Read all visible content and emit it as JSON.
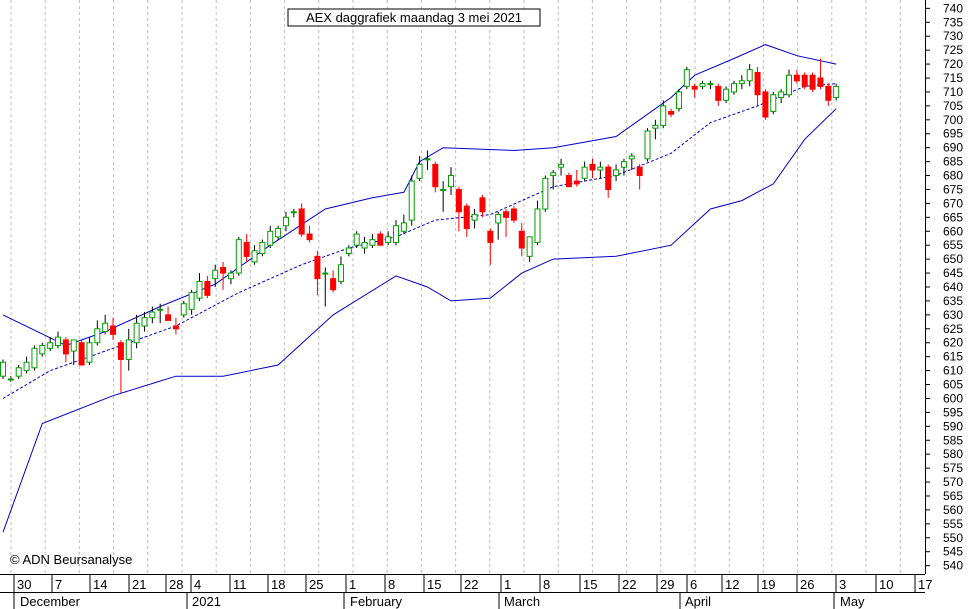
{
  "chart_data": {
    "type": "candlestick",
    "title": "AEX daggrafiek maandag 3 mei 2021",
    "copyright": "© ADN Beursanalyse",
    "ylim": [
      537,
      743
    ],
    "y_ticks": [
      540,
      545,
      550,
      555,
      560,
      565,
      570,
      575,
      580,
      585,
      590,
      595,
      600,
      605,
      610,
      615,
      620,
      625,
      630,
      635,
      640,
      645,
      650,
      655,
      660,
      665,
      670,
      675,
      680,
      685,
      690,
      695,
      700,
      705,
      710,
      715,
      720,
      725,
      730,
      735,
      740
    ],
    "x_ticks": [
      "30",
      "7",
      "14",
      "21",
      "28",
      "4",
      "11",
      "18",
      "25",
      "1",
      "8",
      "15",
      "22",
      "1",
      "8",
      "15",
      "22",
      "29",
      "6",
      "12",
      "19",
      "26",
      "3",
      "10",
      "17"
    ],
    "month_labels": [
      "December",
      "2021",
      "February",
      "March",
      "April",
      "May"
    ],
    "colors": {
      "up": "#00a000",
      "down": "#ff0000",
      "band": "#0000cc",
      "axis": "#000000"
    },
    "candles": [
      {
        "o": 608,
        "h": 614,
        "l": 607,
        "c": 613
      },
      {
        "o": 607,
        "h": 608,
        "l": 606,
        "c": 607
      },
      {
        "o": 608,
        "h": 612,
        "l": 607,
        "c": 611
      },
      {
        "o": 610,
        "h": 615,
        "l": 609,
        "c": 613
      },
      {
        "o": 611,
        "h": 619,
        "l": 610,
        "c": 618
      },
      {
        "o": 616,
        "h": 620,
        "l": 615,
        "c": 619
      },
      {
        "o": 618,
        "h": 622,
        "l": 617,
        "c": 620
      },
      {
        "o": 619,
        "h": 624,
        "l": 618,
        "c": 622
      },
      {
        "o": 621,
        "h": 622,
        "l": 613,
        "c": 616
      },
      {
        "o": 617,
        "h": 621,
        "l": 612,
        "c": 621
      },
      {
        "o": 620,
        "h": 621,
        "l": 612,
        "c": 612
      },
      {
        "o": 613,
        "h": 622,
        "l": 612,
        "c": 620
      },
      {
        "o": 620,
        "h": 628,
        "l": 619,
        "c": 625
      },
      {
        "o": 624,
        "h": 630,
        "l": 623,
        "c": 627
      },
      {
        "o": 626,
        "h": 629,
        "l": 621,
        "c": 623
      },
      {
        "o": 620,
        "h": 621,
        "l": 602,
        "c": 614
      },
      {
        "o": 614,
        "h": 625,
        "l": 610,
        "c": 621
      },
      {
        "o": 620,
        "h": 630,
        "l": 618,
        "c": 627
      },
      {
        "o": 626,
        "h": 631,
        "l": 624,
        "c": 629
      },
      {
        "o": 629,
        "h": 633,
        "l": 627,
        "c": 631
      },
      {
        "o": 632,
        "h": 634,
        "l": 627,
        "c": 632
      },
      {
        "o": 630,
        "h": 633,
        "l": 628,
        "c": 628
      },
      {
        "o": 626,
        "h": 629,
        "l": 623,
        "c": 625
      },
      {
        "o": 630,
        "h": 635,
        "l": 629,
        "c": 634
      },
      {
        "o": 632,
        "h": 639,
        "l": 630,
        "c": 638
      },
      {
        "o": 636,
        "h": 645,
        "l": 635,
        "c": 642
      },
      {
        "o": 642,
        "h": 644,
        "l": 636,
        "c": 637
      },
      {
        "o": 643,
        "h": 648,
        "l": 640,
        "c": 646
      },
      {
        "o": 647,
        "h": 649,
        "l": 639,
        "c": 645
      },
      {
        "o": 643,
        "h": 646,
        "l": 641,
        "c": 645
      },
      {
        "o": 645,
        "h": 658,
        "l": 644,
        "c": 657
      },
      {
        "o": 656,
        "h": 659,
        "l": 649,
        "c": 651
      },
      {
        "o": 649,
        "h": 655,
        "l": 648,
        "c": 653
      },
      {
        "o": 652,
        "h": 657,
        "l": 651,
        "c": 656
      },
      {
        "o": 655,
        "h": 662,
        "l": 654,
        "c": 660
      },
      {
        "o": 658,
        "h": 662,
        "l": 657,
        "c": 661
      },
      {
        "o": 662,
        "h": 667,
        "l": 660,
        "c": 665
      },
      {
        "o": 667,
        "h": 668,
        "l": 665,
        "c": 667
      },
      {
        "o": 668,
        "h": 670,
        "l": 658,
        "c": 659
      },
      {
        "o": 659,
        "h": 662,
        "l": 656,
        "c": 657
      },
      {
        "o": 651,
        "h": 653,
        "l": 637,
        "c": 643
      },
      {
        "o": 645,
        "h": 647,
        "l": 633,
        "c": 645
      },
      {
        "o": 643,
        "h": 646,
        "l": 638,
        "c": 639
      },
      {
        "o": 642,
        "h": 651,
        "l": 641,
        "c": 648
      },
      {
        "o": 652,
        "h": 655,
        "l": 651,
        "c": 654
      },
      {
        "o": 655,
        "h": 660,
        "l": 654,
        "c": 659
      },
      {
        "o": 654,
        "h": 658,
        "l": 652,
        "c": 656
      },
      {
        "o": 655,
        "h": 659,
        "l": 654,
        "c": 657
      },
      {
        "o": 659,
        "h": 660,
        "l": 655,
        "c": 655
      },
      {
        "o": 656,
        "h": 660,
        "l": 655,
        "c": 658
      },
      {
        "o": 656,
        "h": 664,
        "l": 655,
        "c": 662
      },
      {
        "o": 660,
        "h": 666,
        "l": 659,
        "c": 663
      },
      {
        "o": 664,
        "h": 680,
        "l": 662,
        "c": 678
      },
      {
        "o": 679,
        "h": 687,
        "l": 678,
        "c": 684
      },
      {
        "o": 686,
        "h": 689,
        "l": 682,
        "c": 686
      },
      {
        "o": 684,
        "h": 685,
        "l": 674,
        "c": 676
      },
      {
        "o": 675,
        "h": 678,
        "l": 667,
        "c": 675
      },
      {
        "o": 676,
        "h": 683,
        "l": 673,
        "c": 680
      },
      {
        "o": 675,
        "h": 676,
        "l": 660,
        "c": 667
      },
      {
        "o": 669,
        "h": 670,
        "l": 658,
        "c": 661
      },
      {
        "o": 664,
        "h": 668,
        "l": 661,
        "c": 666
      },
      {
        "o": 672,
        "h": 673,
        "l": 665,
        "c": 667
      },
      {
        "o": 660,
        "h": 661,
        "l": 648,
        "c": 656
      },
      {
        "o": 663,
        "h": 667,
        "l": 657,
        "c": 666
      },
      {
        "o": 667,
        "h": 668,
        "l": 658,
        "c": 665
      },
      {
        "o": 668,
        "h": 669,
        "l": 663,
        "c": 664
      },
      {
        "o": 660,
        "h": 663,
        "l": 651,
        "c": 654
      },
      {
        "o": 651,
        "h": 658,
        "l": 649,
        "c": 658
      },
      {
        "o": 656,
        "h": 671,
        "l": 655,
        "c": 668
      },
      {
        "o": 668,
        "h": 680,
        "l": 667,
        "c": 679
      },
      {
        "o": 680,
        "h": 682,
        "l": 675,
        "c": 681
      },
      {
        "o": 683,
        "h": 686,
        "l": 680,
        "c": 684
      },
      {
        "o": 680,
        "h": 681,
        "l": 676,
        "c": 676
      },
      {
        "o": 678,
        "h": 682,
        "l": 676,
        "c": 677
      },
      {
        "o": 679,
        "h": 685,
        "l": 678,
        "c": 683
      },
      {
        "o": 684,
        "h": 686,
        "l": 679,
        "c": 682
      },
      {
        "o": 682,
        "h": 685,
        "l": 679,
        "c": 683
      },
      {
        "o": 683,
        "h": 684,
        "l": 672,
        "c": 675
      },
      {
        "o": 680,
        "h": 684,
        "l": 678,
        "c": 682
      },
      {
        "o": 683,
        "h": 686,
        "l": 680,
        "c": 685
      },
      {
        "o": 686,
        "h": 688,
        "l": 682,
        "c": 687
      },
      {
        "o": 683,
        "h": 684,
        "l": 675,
        "c": 680
      },
      {
        "o": 686,
        "h": 697,
        "l": 685,
        "c": 696
      },
      {
        "o": 697,
        "h": 700,
        "l": 693,
        "c": 698
      },
      {
        "o": 698,
        "h": 707,
        "l": 697,
        "c": 705
      },
      {
        "o": 703,
        "h": 704,
        "l": 701,
        "c": 702
      },
      {
        "o": 704,
        "h": 711,
        "l": 703,
        "c": 710
      },
      {
        "o": 712,
        "h": 719,
        "l": 711,
        "c": 718
      },
      {
        "o": 712,
        "h": 713,
        "l": 708,
        "c": 711
      },
      {
        "o": 712,
        "h": 714,
        "l": 711,
        "c": 713
      },
      {
        "o": 713,
        "h": 714,
        "l": 711,
        "c": 713
      },
      {
        "o": 712,
        "h": 713,
        "l": 705,
        "c": 707
      },
      {
        "o": 707,
        "h": 712,
        "l": 706,
        "c": 711
      },
      {
        "o": 710,
        "h": 714,
        "l": 709,
        "c": 713
      },
      {
        "o": 713,
        "h": 716,
        "l": 711,
        "c": 714
      },
      {
        "o": 714,
        "h": 720,
        "l": 712,
        "c": 718
      },
      {
        "o": 717,
        "h": 719,
        "l": 705,
        "c": 709
      },
      {
        "o": 710,
        "h": 711,
        "l": 700,
        "c": 701
      },
      {
        "o": 703,
        "h": 710,
        "l": 702,
        "c": 709
      },
      {
        "o": 708,
        "h": 711,
        "l": 706,
        "c": 710
      },
      {
        "o": 709,
        "h": 718,
        "l": 708,
        "c": 716
      },
      {
        "o": 716,
        "h": 718,
        "l": 713,
        "c": 714
      },
      {
        "o": 716,
        "h": 717,
        "l": 711,
        "c": 712
      },
      {
        "o": 716,
        "h": 717,
        "l": 710,
        "c": 711
      },
      {
        "o": 715,
        "h": 722,
        "l": 711,
        "c": 712
      },
      {
        "o": 712,
        "h": 713,
        "l": 705,
        "c": 707
      },
      {
        "o": 708,
        "h": 713,
        "l": 707,
        "c": 712
      }
    ],
    "bollinger": {
      "upper": [
        [
          0,
          630
        ],
        [
          8,
          619
        ],
        [
          13,
          624
        ],
        [
          20,
          633
        ],
        [
          27,
          641
        ],
        [
          34,
          655
        ],
        [
          41,
          668
        ],
        [
          47,
          672
        ],
        [
          51,
          674
        ],
        [
          53,
          685
        ],
        [
          56,
          690
        ],
        [
          65,
          689
        ],
        [
          70,
          690
        ],
        [
          78,
          694
        ],
        [
          85,
          708
        ],
        [
          88,
          716
        ],
        [
          93,
          722
        ],
        [
          97,
          727
        ],
        [
          101,
          723
        ],
        [
          106,
          720
        ]
      ],
      "middle": [
        [
          0,
          600
        ],
        [
          6,
          610
        ],
        [
          14,
          618
        ],
        [
          22,
          626
        ],
        [
          30,
          638
        ],
        [
          38,
          648
        ],
        [
          44,
          654
        ],
        [
          50,
          658
        ],
        [
          55,
          664
        ],
        [
          62,
          666
        ],
        [
          70,
          676
        ],
        [
          78,
          680
        ],
        [
          85,
          688
        ],
        [
          90,
          699
        ],
        [
          96,
          705
        ],
        [
          102,
          712
        ],
        [
          106,
          713
        ]
      ],
      "lower": [
        [
          0,
          552
        ],
        [
          5,
          591
        ],
        [
          14,
          601
        ],
        [
          22,
          608
        ],
        [
          28,
          608
        ],
        [
          35,
          612
        ],
        [
          42,
          630
        ],
        [
          50,
          644
        ],
        [
          54,
          640
        ],
        [
          57,
          635
        ],
        [
          62,
          636
        ],
        [
          66,
          645
        ],
        [
          70,
          650
        ],
        [
          78,
          651
        ],
        [
          85,
          655
        ],
        [
          90,
          668
        ],
        [
          94,
          671
        ],
        [
          98,
          677
        ],
        [
          102,
          693
        ],
        [
          106,
          704
        ]
      ]
    }
  }
}
